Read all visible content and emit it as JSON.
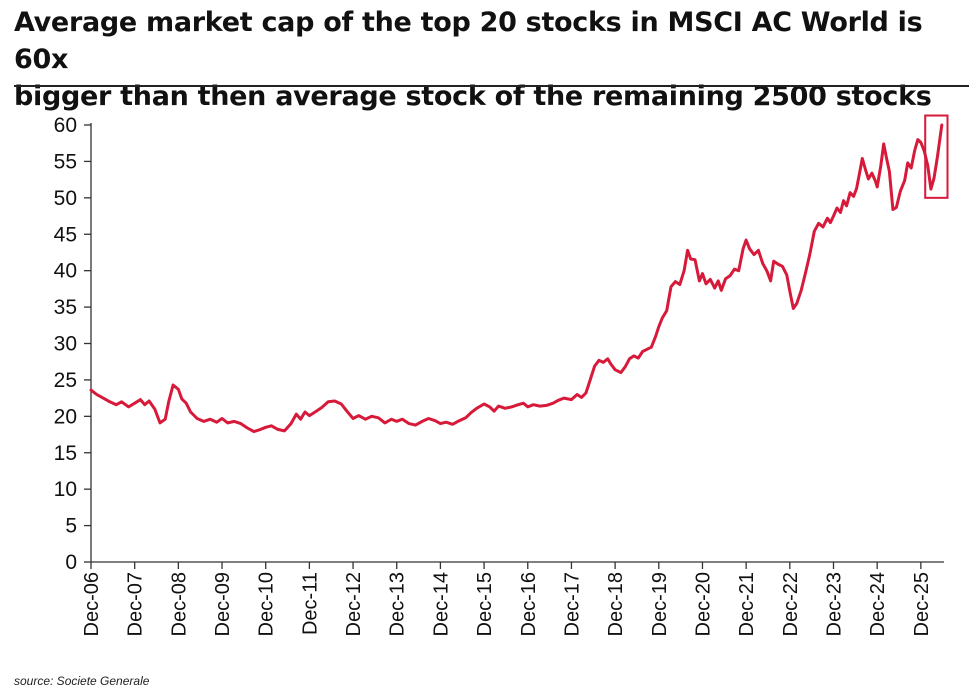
{
  "title_line1": "Average market cap of the top 20 stocks in MSCI AC World is 60x",
  "title_line2": "bigger than then average stock of the remaining 2500 stocks",
  "source": "source: Societe Generale",
  "colors": {
    "line": "#d7193a",
    "highlight_box": "#d7193a",
    "axis": "#333333",
    "text": "#111111"
  },
  "chart_data": {
    "type": "line",
    "xlabel": "",
    "ylabel": "",
    "ylim": [
      0,
      60
    ],
    "yticks": [
      0,
      5,
      10,
      15,
      20,
      25,
      30,
      35,
      40,
      45,
      50,
      55,
      60
    ],
    "xlim": [
      2006.92,
      2026.45
    ],
    "xticks": [
      {
        "label": "Dec-06",
        "x": 2006.92
      },
      {
        "label": "Dec-07",
        "x": 2007.92
      },
      {
        "label": "Dec-08",
        "x": 2008.92
      },
      {
        "label": "Dec-09",
        "x": 2009.92
      },
      {
        "label": "Dec-10",
        "x": 2010.92
      },
      {
        "label": "Dec-11",
        "x": 2011.92
      },
      {
        "label": "Dec-12",
        "x": 2012.92
      },
      {
        "label": "Dec-13",
        "x": 2013.92
      },
      {
        "label": "Dec-14",
        "x": 2014.92
      },
      {
        "label": "Dec-15",
        "x": 2015.92
      },
      {
        "label": "Dec-16",
        "x": 2016.92
      },
      {
        "label": "Dec-17",
        "x": 2017.92
      },
      {
        "label": "Dec-18",
        "x": 2018.92
      },
      {
        "label": "Dec-19",
        "x": 2019.92
      },
      {
        "label": "Dec-20",
        "x": 2020.92
      },
      {
        "label": "Dec-21",
        "x": 2021.92
      },
      {
        "label": "Dec-22",
        "x": 2022.92
      },
      {
        "label": "Dec-23",
        "x": 2023.92
      },
      {
        "label": "Dec-24",
        "x": 2024.92
      },
      {
        "label": "Dec-25",
        "x": 2025.92
      }
    ],
    "grid": false,
    "highlight": {
      "x0": 2026.02,
      "x1": 2026.53,
      "y0": 50.0,
      "y1": 61.3
    },
    "series": [
      {
        "values": [
          [
            2006.92,
            23.6
          ],
          [
            2007.05,
            23.0
          ],
          [
            2007.2,
            22.5
          ],
          [
            2007.35,
            22.0
          ],
          [
            2007.5,
            21.6
          ],
          [
            2007.62,
            22.0
          ],
          [
            2007.78,
            21.3
          ],
          [
            2007.92,
            21.8
          ],
          [
            2008.05,
            22.3
          ],
          [
            2008.15,
            21.6
          ],
          [
            2008.25,
            22.1
          ],
          [
            2008.38,
            21.0
          ],
          [
            2008.5,
            19.1
          ],
          [
            2008.62,
            19.6
          ],
          [
            2008.7,
            22.0
          ],
          [
            2008.8,
            24.3
          ],
          [
            2008.92,
            23.7
          ],
          [
            2009.0,
            22.4
          ],
          [
            2009.1,
            21.8
          ],
          [
            2009.2,
            20.6
          ],
          [
            2009.35,
            19.7
          ],
          [
            2009.5,
            19.3
          ],
          [
            2009.65,
            19.6
          ],
          [
            2009.8,
            19.2
          ],
          [
            2009.92,
            19.7
          ],
          [
            2010.05,
            19.1
          ],
          [
            2010.2,
            19.3
          ],
          [
            2010.35,
            19.0
          ],
          [
            2010.5,
            18.4
          ],
          [
            2010.65,
            17.9
          ],
          [
            2010.8,
            18.2
          ],
          [
            2010.92,
            18.5
          ],
          [
            2011.05,
            18.7
          ],
          [
            2011.2,
            18.2
          ],
          [
            2011.35,
            18.0
          ],
          [
            2011.5,
            19.0
          ],
          [
            2011.62,
            20.3
          ],
          [
            2011.72,
            19.6
          ],
          [
            2011.82,
            20.6
          ],
          [
            2011.92,
            20.1
          ],
          [
            2012.05,
            20.6
          ],
          [
            2012.2,
            21.2
          ],
          [
            2012.35,
            22.0
          ],
          [
            2012.5,
            22.1
          ],
          [
            2012.65,
            21.7
          ],
          [
            2012.78,
            20.7
          ],
          [
            2012.92,
            19.7
          ],
          [
            2013.05,
            20.1
          ],
          [
            2013.2,
            19.6
          ],
          [
            2013.35,
            20.0
          ],
          [
            2013.5,
            19.8
          ],
          [
            2013.65,
            19.1
          ],
          [
            2013.8,
            19.6
          ],
          [
            2013.92,
            19.3
          ],
          [
            2014.05,
            19.6
          ],
          [
            2014.2,
            19.0
          ],
          [
            2014.35,
            18.8
          ],
          [
            2014.5,
            19.3
          ],
          [
            2014.65,
            19.7
          ],
          [
            2014.8,
            19.4
          ],
          [
            2014.92,
            19.0
          ],
          [
            2015.05,
            19.2
          ],
          [
            2015.2,
            18.9
          ],
          [
            2015.35,
            19.4
          ],
          [
            2015.5,
            19.8
          ],
          [
            2015.62,
            20.5
          ],
          [
            2015.75,
            21.1
          ],
          [
            2015.92,
            21.7
          ],
          [
            2016.05,
            21.3
          ],
          [
            2016.15,
            20.7
          ],
          [
            2016.25,
            21.4
          ],
          [
            2016.4,
            21.1
          ],
          [
            2016.55,
            21.3
          ],
          [
            2016.7,
            21.6
          ],
          [
            2016.82,
            21.8
          ],
          [
            2016.92,
            21.3
          ],
          [
            2017.05,
            21.6
          ],
          [
            2017.2,
            21.4
          ],
          [
            2017.35,
            21.5
          ],
          [
            2017.5,
            21.8
          ],
          [
            2017.62,
            22.2
          ],
          [
            2017.75,
            22.5
          ],
          [
            2017.92,
            22.3
          ],
          [
            2018.05,
            23.0
          ],
          [
            2018.15,
            22.6
          ],
          [
            2018.25,
            23.2
          ],
          [
            2018.35,
            25.0
          ],
          [
            2018.45,
            26.9
          ],
          [
            2018.55,
            27.7
          ],
          [
            2018.65,
            27.4
          ],
          [
            2018.75,
            27.9
          ],
          [
            2018.82,
            27.2
          ],
          [
            2018.92,
            26.4
          ],
          [
            2019.05,
            26.0
          ],
          [
            2019.15,
            26.8
          ],
          [
            2019.25,
            27.9
          ],
          [
            2019.35,
            28.3
          ],
          [
            2019.45,
            28.0
          ],
          [
            2019.55,
            28.9
          ],
          [
            2019.65,
            29.2
          ],
          [
            2019.75,
            29.5
          ],
          [
            2019.85,
            31.0
          ],
          [
            2019.92,
            32.3
          ],
          [
            2020.0,
            33.5
          ],
          [
            2020.1,
            34.5
          ],
          [
            2020.2,
            37.8
          ],
          [
            2020.3,
            38.5
          ],
          [
            2020.4,
            38.1
          ],
          [
            2020.5,
            40.0
          ],
          [
            2020.58,
            42.8
          ],
          [
            2020.65,
            41.6
          ],
          [
            2020.75,
            41.5
          ],
          [
            2020.85,
            38.6
          ],
          [
            2020.92,
            39.6
          ],
          [
            2021.0,
            38.2
          ],
          [
            2021.1,
            38.8
          ],
          [
            2021.2,
            37.6
          ],
          [
            2021.28,
            38.6
          ],
          [
            2021.35,
            37.3
          ],
          [
            2021.45,
            38.9
          ],
          [
            2021.55,
            39.3
          ],
          [
            2021.65,
            40.2
          ],
          [
            2021.75,
            40.0
          ],
          [
            2021.85,
            43.0
          ],
          [
            2021.92,
            44.2
          ],
          [
            2022.0,
            43.0
          ],
          [
            2022.1,
            42.2
          ],
          [
            2022.2,
            42.8
          ],
          [
            2022.3,
            41.0
          ],
          [
            2022.4,
            39.9
          ],
          [
            2022.48,
            38.6
          ],
          [
            2022.55,
            41.3
          ],
          [
            2022.65,
            40.9
          ],
          [
            2022.75,
            40.6
          ],
          [
            2022.85,
            39.4
          ],
          [
            2022.92,
            37.2
          ],
          [
            2023.0,
            34.8
          ],
          [
            2023.08,
            35.5
          ],
          [
            2023.18,
            37.3
          ],
          [
            2023.28,
            39.7
          ],
          [
            2023.38,
            42.3
          ],
          [
            2023.48,
            45.4
          ],
          [
            2023.58,
            46.5
          ],
          [
            2023.68,
            46.0
          ],
          [
            2023.78,
            47.2
          ],
          [
            2023.85,
            46.6
          ],
          [
            2023.92,
            47.5
          ],
          [
            2024.0,
            48.6
          ],
          [
            2024.08,
            48.0
          ],
          [
            2024.15,
            49.6
          ],
          [
            2024.22,
            48.9
          ],
          [
            2024.3,
            50.7
          ],
          [
            2024.38,
            50.2
          ],
          [
            2024.45,
            51.3
          ],
          [
            2024.52,
            53.5
          ],
          [
            2024.58,
            55.4
          ],
          [
            2024.65,
            53.9
          ],
          [
            2024.72,
            52.6
          ],
          [
            2024.8,
            53.4
          ],
          [
            2024.88,
            52.3
          ],
          [
            2024.92,
            51.5
          ],
          [
            2025.0,
            54.3
          ],
          [
            2025.07,
            57.4
          ],
          [
            2025.13,
            55.6
          ],
          [
            2025.2,
            53.6
          ],
          [
            2025.28,
            48.4
          ],
          [
            2025.36,
            48.7
          ],
          [
            2025.45,
            50.9
          ],
          [
            2025.55,
            52.4
          ],
          [
            2025.62,
            54.8
          ],
          [
            2025.7,
            54.1
          ],
          [
            2025.78,
            56.5
          ],
          [
            2025.85,
            58.0
          ],
          [
            2025.92,
            57.6
          ],
          [
            2026.0,
            56.4
          ],
          [
            2026.08,
            54.4
          ],
          [
            2026.15,
            51.2
          ],
          [
            2026.22,
            52.7
          ],
          [
            2026.3,
            55.6
          ],
          [
            2026.4,
            60.0
          ]
        ]
      }
    ]
  }
}
